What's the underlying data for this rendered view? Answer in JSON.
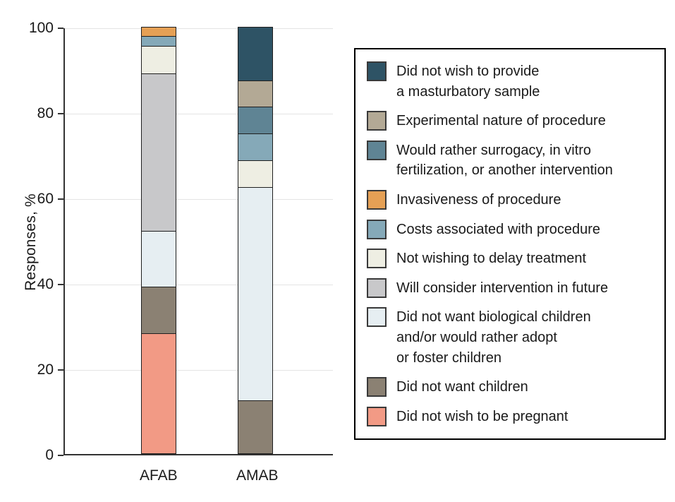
{
  "chart_data": {
    "type": "bar",
    "stacked": true,
    "title": "",
    "xlabel": "",
    "ylabel": "Responses, %",
    "ylim": [
      0,
      100
    ],
    "yticks": [
      0,
      20,
      40,
      60,
      80,
      100
    ],
    "grid": true,
    "legend_position": "right",
    "categories": [
      "AFAB",
      "AMAB"
    ],
    "series": [
      {
        "name": "Did not wish to provide\na masturbatory sample",
        "color": "#2e5365",
        "values": [
          0,
          12.5
        ]
      },
      {
        "name": "Experimental nature of procedure",
        "color": "#b3a995",
        "values": [
          0,
          6.25
        ]
      },
      {
        "name": "Would rather surrogacy, in vitro\nfertilization, or another intervention",
        "color": "#5f8494",
        "values": [
          0,
          6.25
        ]
      },
      {
        "name": "Invasiveness of procedure",
        "color": "#e5a055",
        "values": [
          2.2,
          0
        ]
      },
      {
        "name": "Costs associated with procedure",
        "color": "#85a9b8",
        "values": [
          2.2,
          6.25
        ]
      },
      {
        "name": "Not wishing to delay treatment",
        "color": "#eeeee3",
        "values": [
          6.5,
          6.25
        ]
      },
      {
        "name": "Will consider intervention in future",
        "color": "#c8c8ca",
        "values": [
          36.9,
          0
        ]
      },
      {
        "name": "Did not want biological children\nand/or would rather adopt\nor foster children",
        "color": "#e6eef2",
        "values": [
          13.0,
          50.0
        ]
      },
      {
        "name": "Did not want children",
        "color": "#8b8173",
        "values": [
          10.9,
          12.5
        ]
      },
      {
        "name": "Did not wish to be pregnant",
        "color": "#f29a85",
        "values": [
          28.3,
          0
        ]
      }
    ],
    "colors": {
      "axis_line": "#333333",
      "gridline": "#e4e4e4",
      "segment_border": "#1f1f1f",
      "text": "#1a1a1a"
    }
  }
}
